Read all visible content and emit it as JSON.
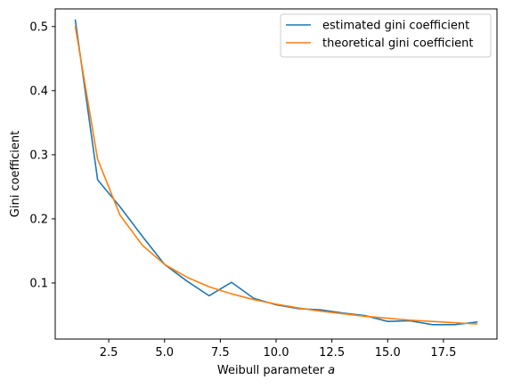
{
  "chart_data": {
    "type": "line",
    "xlabel_prefix": "Weibull parameter ",
    "xlabel_var": "a",
    "ylabel": "Gini coefficient",
    "xlim": [
      0.1,
      19.9
    ],
    "ylim": [
      0.0125,
      0.5275
    ],
    "xticks": [
      2.5,
      5.0,
      7.5,
      10.0,
      12.5,
      15.0,
      17.5
    ],
    "xtick_labels": [
      "2.5",
      "5.0",
      "7.5",
      "10.0",
      "12.5",
      "15.0",
      "17.5"
    ],
    "yticks": [
      0.1,
      0.2,
      0.3,
      0.4,
      0.5
    ],
    "ytick_labels": [
      "0.1",
      "0.2",
      "0.3",
      "0.4",
      "0.5"
    ],
    "grid": false,
    "legend_position": "top-right",
    "series": [
      {
        "name": "estimated gini coefficient",
        "color": "#1f77b4",
        "x": [
          1,
          2,
          3,
          4,
          5,
          6,
          7,
          8,
          9,
          10,
          11,
          12,
          13,
          14,
          15,
          16,
          17,
          18,
          19
        ],
        "y": [
          0.51,
          0.261,
          0.219,
          0.173,
          0.129,
          0.103,
          0.08,
          0.101,
          0.076,
          0.066,
          0.06,
          0.058,
          0.053,
          0.049,
          0.04,
          0.041,
          0.035,
          0.035,
          0.039
        ]
      },
      {
        "name": "theoretical gini coefficient",
        "color": "#ff7f0e",
        "x": [
          1,
          2,
          3,
          4,
          5,
          6,
          7,
          8,
          9,
          10,
          11,
          12,
          13,
          14,
          15,
          16,
          17,
          18,
          19
        ],
        "y": [
          0.5,
          0.293,
          0.206,
          0.159,
          0.129,
          0.109,
          0.094,
          0.083,
          0.074,
          0.067,
          0.061,
          0.056,
          0.052,
          0.048,
          0.045,
          0.042,
          0.04,
          0.038,
          0.036
        ]
      }
    ]
  }
}
